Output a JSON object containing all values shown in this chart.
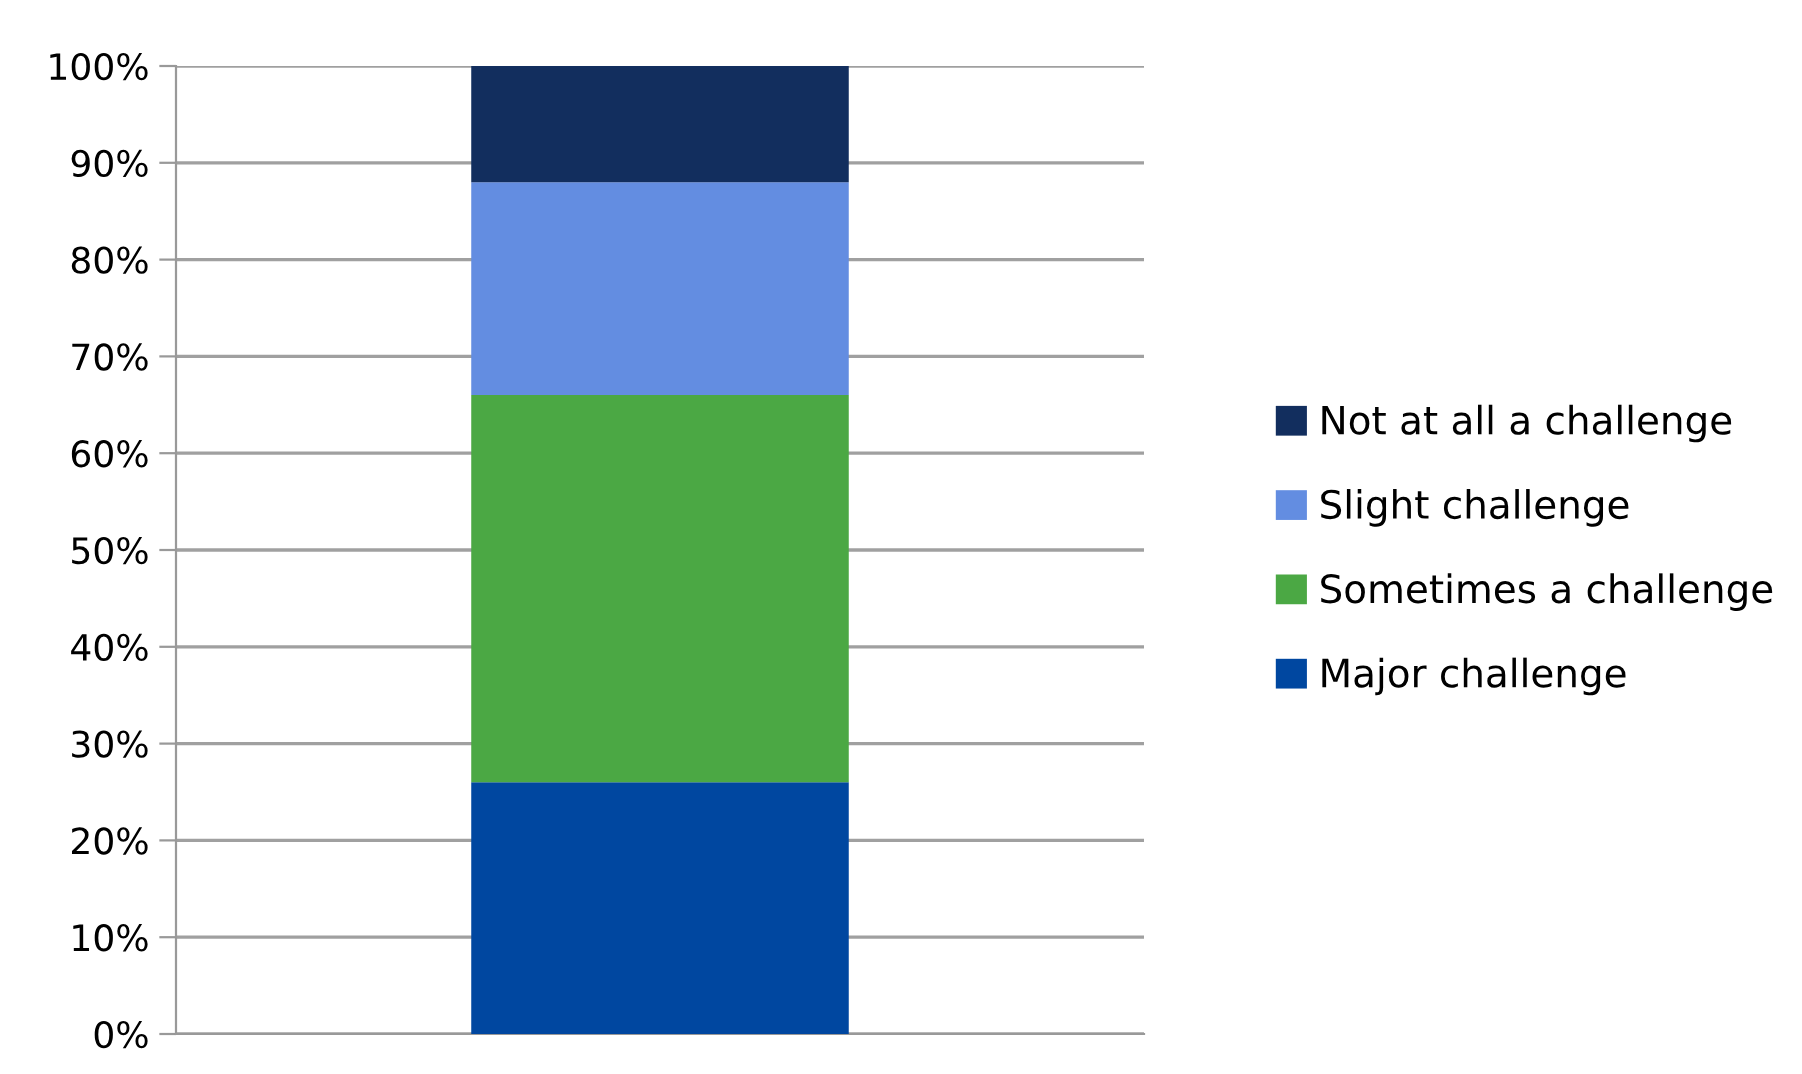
{
  "chart_data": {
    "type": "bar",
    "stacked": true,
    "categories": [
      null
    ],
    "series": [
      {
        "name": "Major challenge",
        "color": "#0047a0",
        "values": [
          26
        ]
      },
      {
        "name": "Sometimes a challenge",
        "color": "#4ba844",
        "values": [
          40
        ]
      },
      {
        "name": "Slight challenge",
        "color": "#638de1",
        "values": [
          22
        ]
      },
      {
        "name": "Not at all a challenge",
        "color": "#122e5e",
        "values": [
          12
        ]
      }
    ],
    "ylim": [
      0,
      100
    ],
    "yticks": [
      {
        "value": 0,
        "label": "0%"
      },
      {
        "value": 10,
        "label": "10%"
      },
      {
        "value": 20,
        "label": "20%"
      },
      {
        "value": 30,
        "label": "30%"
      },
      {
        "value": 40,
        "label": "40%"
      },
      {
        "value": 50,
        "label": "50%"
      },
      {
        "value": 60,
        "label": "60%"
      },
      {
        "value": 70,
        "label": "70%"
      },
      {
        "value": 80,
        "label": "80%"
      },
      {
        "value": 90,
        "label": "90%"
      },
      {
        "value": 100,
        "label": "100%"
      }
    ],
    "grid": "y",
    "legend": "right"
  }
}
